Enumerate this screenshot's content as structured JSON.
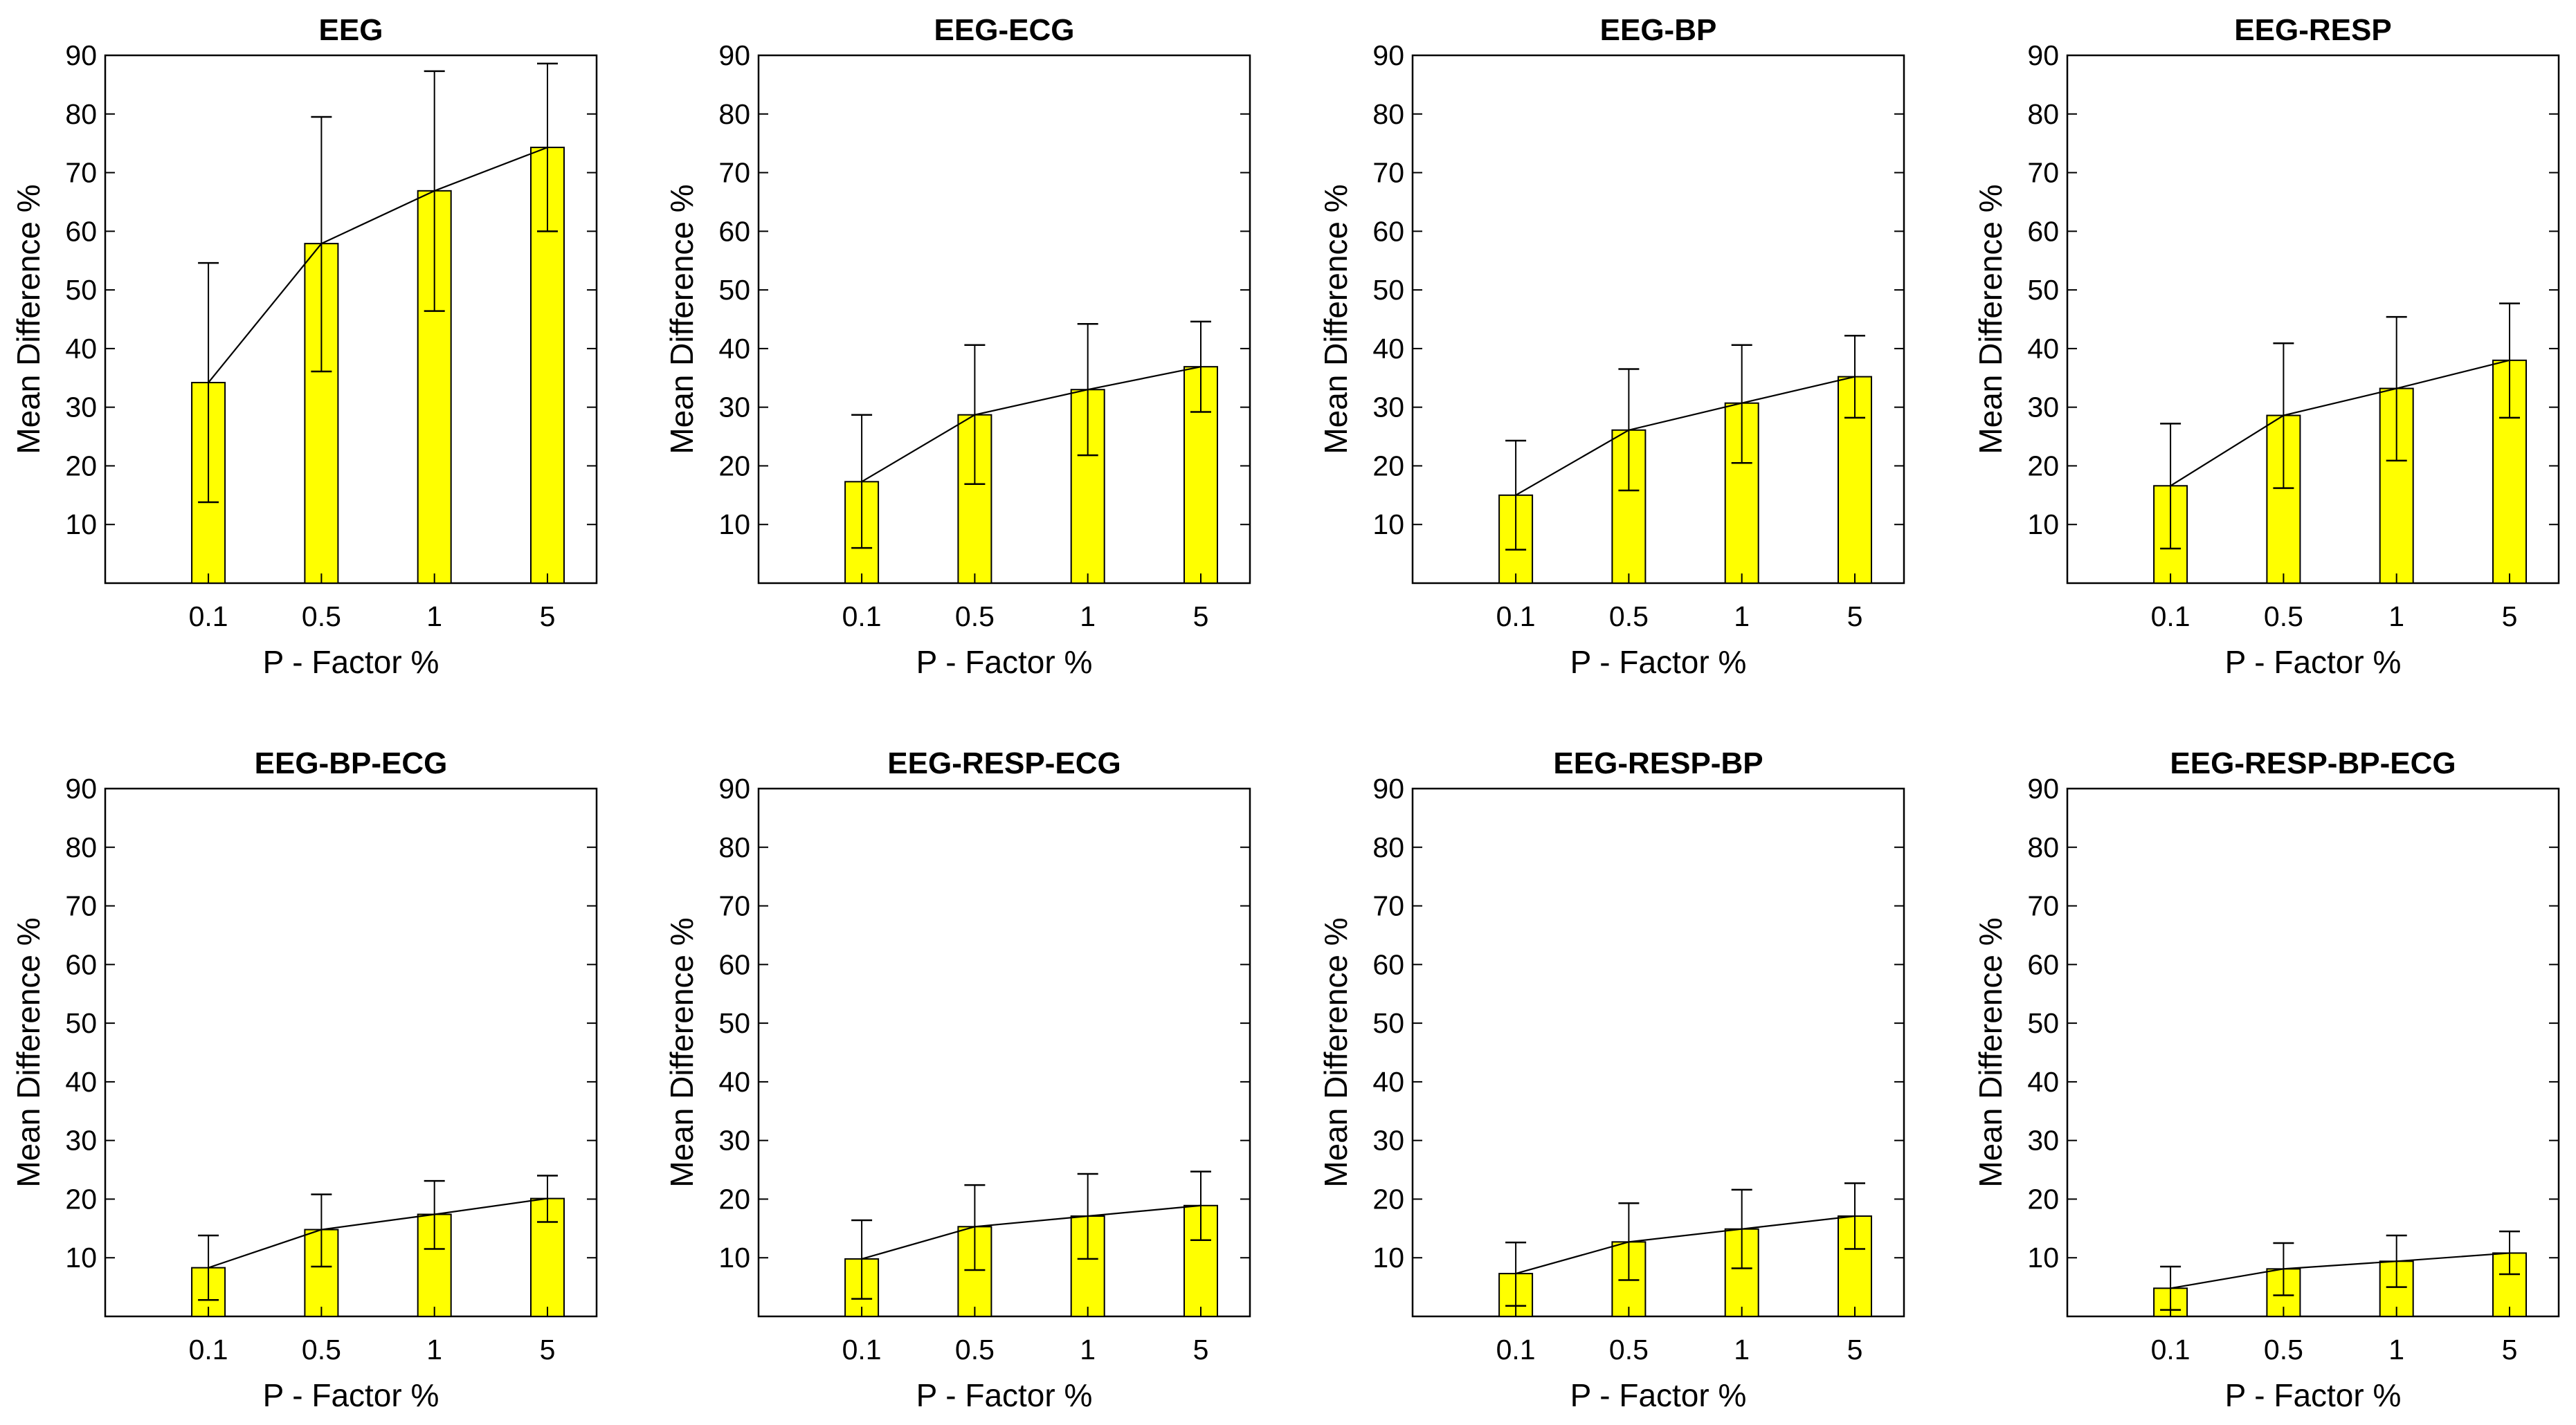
{
  "style": {
    "bar_color": "#ffff00",
    "bar_edge": "#000000",
    "line_color": "#000000",
    "background": "#ffffff"
  },
  "chart_data": [
    {
      "type": "bar",
      "title": "EEG",
      "xlabel": "P - Factor %",
      "ylabel": "Mean Difference %",
      "categories": [
        "0.1",
        "0.5",
        "1",
        "5"
      ],
      "values": [
        34.2,
        57.9,
        66.9,
        74.3
      ],
      "error_low": [
        13.8,
        36.1,
        46.4,
        60.0
      ],
      "error_high": [
        54.6,
        79.5,
        87.3,
        88.6
      ],
      "ylim": [
        0,
        90
      ],
      "yticks": [
        10,
        20,
        30,
        40,
        50,
        60,
        70,
        80,
        90
      ],
      "trend_line": true,
      "grid": false
    },
    {
      "type": "bar",
      "title": "EEG-ECG",
      "xlabel": "P - Factor %",
      "ylabel": "Mean Difference %",
      "categories": [
        "0.1",
        "0.5",
        "1",
        "5"
      ],
      "values": [
        17.3,
        28.7,
        33.0,
        36.9
      ],
      "error_low": [
        6.0,
        16.9,
        21.8,
        29.2
      ],
      "error_high": [
        28.7,
        40.6,
        44.2,
        44.6
      ],
      "ylim": [
        0,
        90
      ],
      "yticks": [
        10,
        20,
        30,
        40,
        50,
        60,
        70,
        80,
        90
      ],
      "trend_line": true,
      "grid": false
    },
    {
      "type": "bar",
      "title": "EEG-BP",
      "xlabel": "P - Factor %",
      "ylabel": "Mean Difference %",
      "categories": [
        "0.1",
        "0.5",
        "1",
        "5"
      ],
      "values": [
        15.0,
        26.1,
        30.7,
        35.2
      ],
      "error_low": [
        5.7,
        15.8,
        20.5,
        28.2
      ],
      "error_high": [
        24.3,
        36.5,
        40.6,
        42.2
      ],
      "ylim": [
        0,
        90
      ],
      "yticks": [
        10,
        20,
        30,
        40,
        50,
        60,
        70,
        80,
        90
      ],
      "trend_line": true,
      "grid": false
    },
    {
      "type": "bar",
      "title": "EEG-RESP",
      "xlabel": "P - Factor %",
      "ylabel": "Mean Difference %",
      "categories": [
        "0.1",
        "0.5",
        "1",
        "5"
      ],
      "values": [
        16.6,
        28.6,
        33.2,
        38.0
      ],
      "error_low": [
        5.9,
        16.2,
        20.9,
        28.2
      ],
      "error_high": [
        27.2,
        40.9,
        45.4,
        47.7
      ],
      "ylim": [
        0,
        90
      ],
      "yticks": [
        10,
        20,
        30,
        40,
        50,
        60,
        70,
        80,
        90
      ],
      "trend_line": true,
      "grid": false
    },
    {
      "type": "bar",
      "title": "EEG-BP-ECG",
      "xlabel": "P - Factor %",
      "ylabel": "Mean Difference %",
      "categories": [
        "0.1",
        "0.5",
        "1",
        "5"
      ],
      "values": [
        8.3,
        14.8,
        17.4,
        20.1
      ],
      "error_low": [
        2.8,
        8.5,
        11.5,
        16.1
      ],
      "error_high": [
        13.8,
        20.8,
        23.1,
        24.0
      ],
      "ylim": [
        0,
        90
      ],
      "yticks": [
        10,
        20,
        30,
        40,
        50,
        60,
        70,
        80,
        90
      ],
      "trend_line": true,
      "grid": false
    },
    {
      "type": "bar",
      "title": "EEG-RESP-ECG",
      "xlabel": "P - Factor %",
      "ylabel": "Mean Difference %",
      "categories": [
        "0.1",
        "0.5",
        "1",
        "5"
      ],
      "values": [
        9.8,
        15.3,
        17.1,
        18.9
      ],
      "error_low": [
        3.0,
        7.9,
        9.8,
        13.0
      ],
      "error_high": [
        16.4,
        22.4,
        24.3,
        24.7
      ],
      "ylim": [
        0,
        90
      ],
      "yticks": [
        10,
        20,
        30,
        40,
        50,
        60,
        70,
        80,
        90
      ],
      "trend_line": true,
      "grid": false
    },
    {
      "type": "bar",
      "title": "EEG-RESP-BP",
      "xlabel": "P - Factor %",
      "ylabel": "Mean Difference %",
      "categories": [
        "0.1",
        "0.5",
        "1",
        "5"
      ],
      "values": [
        7.3,
        12.7,
        14.9,
        17.1
      ],
      "error_low": [
        1.8,
        6.2,
        8.2,
        11.5
      ],
      "error_high": [
        12.6,
        19.3,
        21.6,
        22.7
      ],
      "ylim": [
        0,
        90
      ],
      "yticks": [
        10,
        20,
        30,
        40,
        50,
        60,
        70,
        80,
        90
      ],
      "trend_line": true,
      "grid": false
    },
    {
      "type": "bar",
      "title": "EEG-RESP-BP-ECG",
      "xlabel": "P - Factor %",
      "ylabel": "Mean Difference %",
      "categories": [
        "0.1",
        "0.5",
        "1",
        "5"
      ],
      "values": [
        4.8,
        8.1,
        9.4,
        10.8
      ],
      "error_low": [
        1.1,
        3.6,
        5.0,
        7.2
      ],
      "error_high": [
        8.5,
        12.5,
        13.8,
        14.5
      ],
      "ylim": [
        0,
        90
      ],
      "yticks": [
        10,
        20,
        30,
        40,
        50,
        60,
        70,
        80,
        90
      ],
      "trend_line": true,
      "grid": false
    }
  ]
}
